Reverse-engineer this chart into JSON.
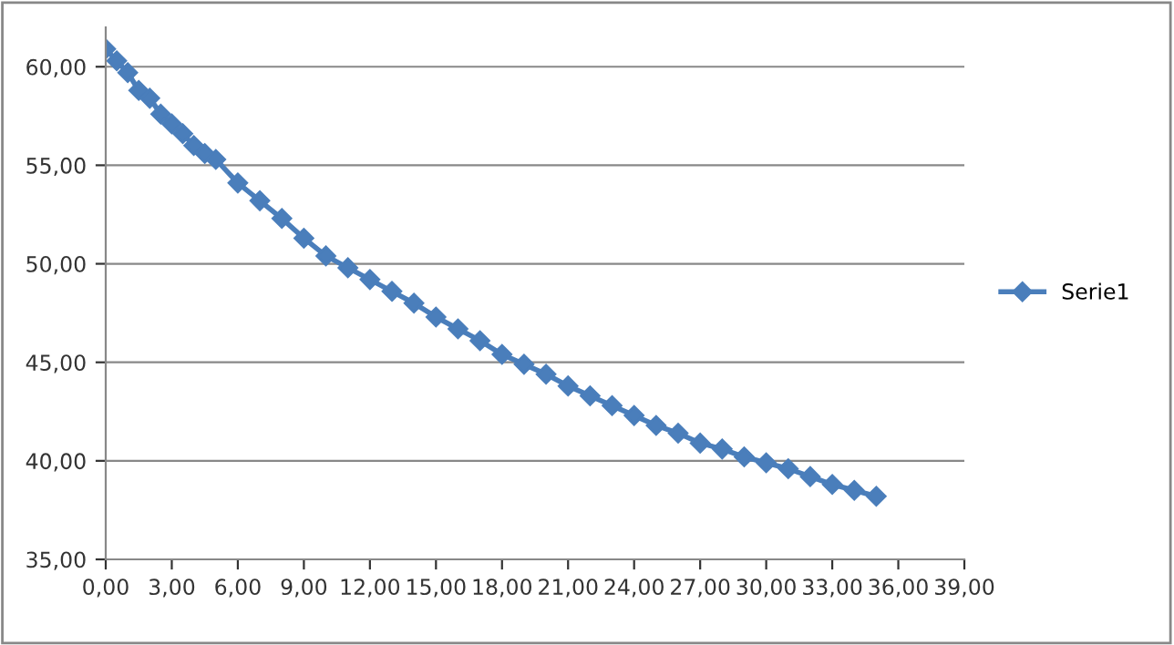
{
  "chart_data": {
    "type": "line",
    "x": [
      0,
      0.5,
      1,
      1.5,
      2,
      2.5,
      3,
      3.5,
      4,
      4.5,
      5,
      6,
      7,
      8,
      9,
      10,
      11,
      12,
      13,
      14,
      15,
      16,
      17,
      18,
      19,
      20,
      21,
      22,
      23,
      24,
      25,
      26,
      27,
      28,
      29,
      30,
      31,
      32,
      33,
      34,
      35
    ],
    "series": [
      {
        "name": "Serie1",
        "color": "#4a7ebb",
        "values": [
          60.9,
          60.3,
          59.7,
          58.8,
          58.4,
          57.6,
          57.1,
          56.6,
          56.0,
          55.6,
          55.3,
          54.1,
          53.2,
          52.3,
          51.3,
          50.4,
          49.8,
          49.2,
          48.6,
          48.0,
          47.3,
          46.7,
          46.1,
          45.4,
          44.9,
          44.4,
          43.8,
          43.3,
          42.8,
          42.3,
          41.8,
          41.4,
          40.9,
          40.6,
          40.2,
          39.9,
          39.6,
          39.2,
          38.8,
          38.5,
          38.2
        ]
      }
    ],
    "xlim": [
      0,
      39
    ],
    "xticks": [
      {
        "value": 0,
        "label": "0,00"
      },
      {
        "value": 3,
        "label": "3,00"
      },
      {
        "value": 6,
        "label": "6,00"
      },
      {
        "value": 9,
        "label": "9,00"
      },
      {
        "value": 12,
        "label": "12,00"
      },
      {
        "value": 15,
        "label": "15,00"
      },
      {
        "value": 18,
        "label": "18,00"
      },
      {
        "value": 21,
        "label": "21,00"
      },
      {
        "value": 24,
        "label": "24,00"
      },
      {
        "value": 27,
        "label": "27,00"
      },
      {
        "value": 30,
        "label": "30,00"
      },
      {
        "value": 33,
        "label": "33,00"
      },
      {
        "value": 36,
        "label": "36,00"
      },
      {
        "value": 39,
        "label": "39,00"
      }
    ],
    "ylim": [
      35,
      62
    ],
    "yticks": [
      {
        "value": 35,
        "label": "35,00"
      },
      {
        "value": 40,
        "label": "40,00"
      },
      {
        "value": 45,
        "label": "45,00"
      },
      {
        "value": 50,
        "label": "50,00"
      },
      {
        "value": 55,
        "label": "55,00"
      },
      {
        "value": 60,
        "label": "60,00"
      }
    ],
    "grid": "y",
    "legend": "right",
    "marker": "diamond",
    "line_style": "solid"
  }
}
